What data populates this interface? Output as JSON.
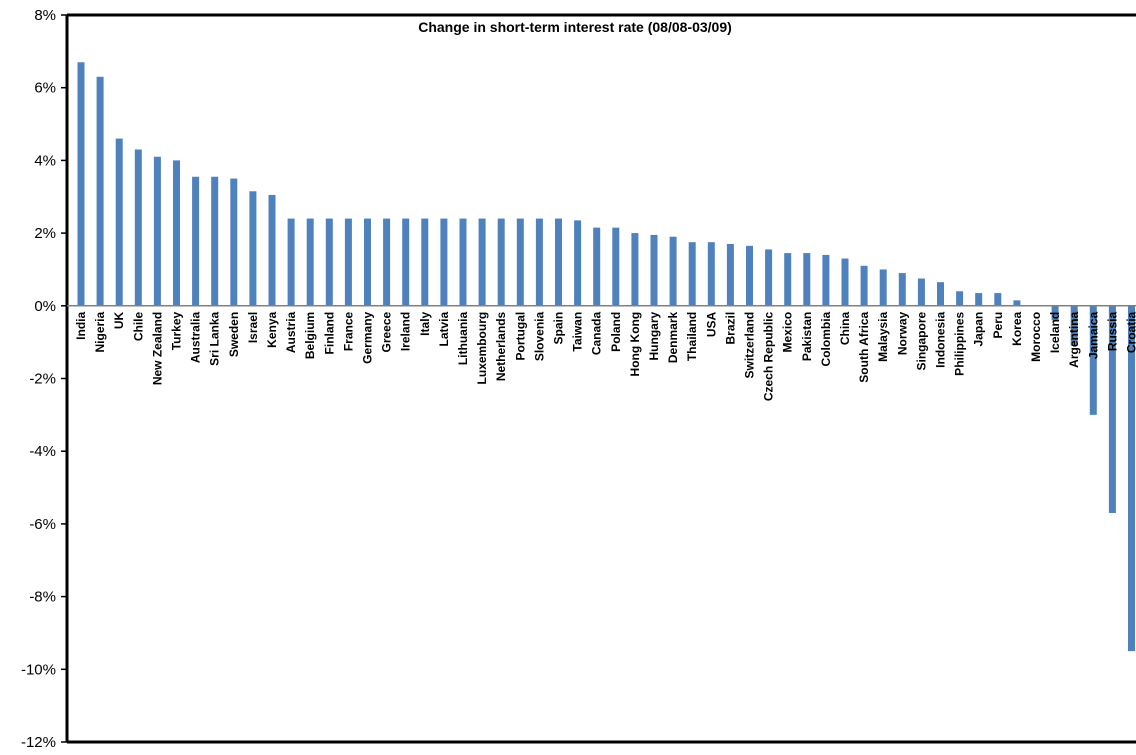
{
  "chart_data": {
    "type": "bar",
    "title": "Change in short-term interest rate (08/08-03/09)",
    "xlabel": "",
    "ylabel": "",
    "ylim": [
      -12,
      8
    ],
    "yticks": [
      8,
      6,
      4,
      2,
      0,
      -2,
      -4,
      -6,
      -8,
      -10,
      -12
    ],
    "ytick_labels": [
      "8%",
      "6%",
      "4%",
      "2%",
      "0%",
      "-2%",
      "-4%",
      "-6%",
      "-8%",
      "-10%",
      "-12%"
    ],
    "grid": false,
    "legend": "none",
    "bar_color": "#4F81BD",
    "categories": [
      "India",
      "Nigeria",
      "UK",
      "Chile",
      "New Zealand",
      "Turkey",
      "Australia",
      "Sri Lanka",
      "Sweden",
      "Israel",
      "Kenya",
      "Austria",
      "Belgium",
      "Finland",
      "France",
      "Germany",
      "Greece",
      "Ireland",
      "Italy",
      "Latvia",
      "Lithuania",
      "Luxembourg",
      "Netherlands",
      "Portugal",
      "Slovenia",
      "Spain",
      "Taiwan",
      "Canada",
      "Poland",
      "Hong Kong",
      "Hungary",
      "Denmark",
      "Thailand",
      "USA",
      "Brazil",
      "Switzerland",
      "Czech Republic",
      "Mexico",
      "Pakistan",
      "Colombia",
      "China",
      "South Africa",
      "Malaysia",
      "Norway",
      "Singapore",
      "Indonesia",
      "Philippines",
      "Japan",
      "Peru",
      "Korea",
      "Morocco",
      "Iceland",
      "Argentina",
      "Jamaica",
      "Russia",
      "Croatia"
    ],
    "values": [
      6.7,
      6.3,
      4.6,
      4.3,
      4.1,
      4.0,
      3.55,
      3.55,
      3.5,
      3.15,
      3.05,
      2.4,
      2.4,
      2.4,
      2.4,
      2.4,
      2.4,
      2.4,
      2.4,
      2.4,
      2.4,
      2.4,
      2.4,
      2.4,
      2.4,
      2.4,
      2.35,
      2.15,
      2.15,
      2.0,
      1.95,
      1.9,
      1.75,
      1.75,
      1.7,
      1.65,
      1.55,
      1.45,
      1.45,
      1.4,
      1.3,
      1.1,
      1.0,
      0.9,
      0.75,
      0.65,
      0.4,
      0.35,
      0.35,
      0.15,
      0.0,
      -0.4,
      -1.1,
      -3.0,
      -5.7,
      -9.5
    ]
  }
}
